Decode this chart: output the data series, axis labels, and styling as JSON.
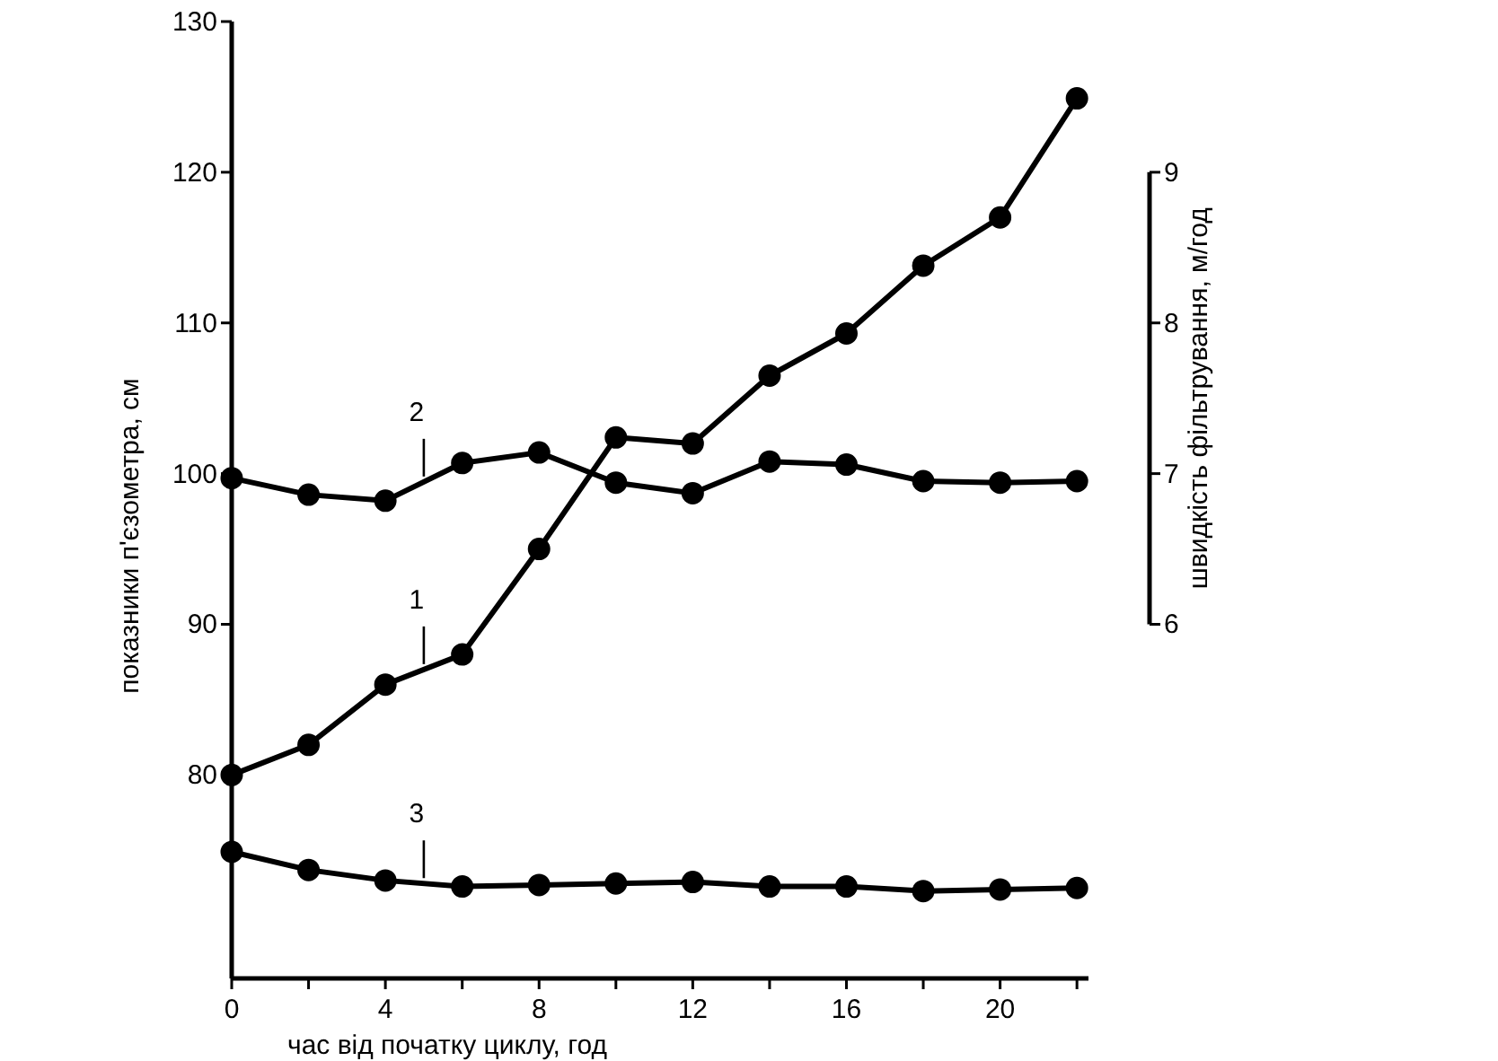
{
  "chart_data": {
    "type": "line",
    "xlabel": "час від початку циклу, год",
    "ylabel": "показники п'єзометра, см",
    "y2label": "швидкість фільтрування, м/год",
    "xlim": [
      0,
      22.3
    ],
    "xticks": [
      0,
      {
        "value": 2,
        "label": null
      },
      4,
      {
        "value": 6,
        "label": null
      },
      8,
      {
        "value": 10,
        "label": null
      },
      12,
      {
        "value": 14,
        "label": null
      },
      16,
      {
        "value": 18,
        "label": null
      },
      20,
      {
        "value": 22,
        "label": null
      }
    ],
    "ylim": [
      66.5,
      130
    ],
    "yticks": [
      80,
      90,
      100,
      110,
      120,
      130
    ],
    "y2lim": [
      3.65,
      10
    ],
    "y2ticks": [
      6,
      7,
      8,
      9
    ],
    "marker": "circle",
    "x": [
      0,
      2,
      4,
      6,
      8,
      10,
      12,
      14,
      16,
      18,
      20,
      22
    ],
    "series": [
      {
        "name": "1",
        "color": "#000000",
        "values": [
          80,
          82,
          86,
          88,
          95,
          102.4,
          102,
          106.5,
          109.3,
          113.8,
          117,
          124.9
        ]
      },
      {
        "name": "2",
        "color": "#000000",
        "axis": "y2",
        "values": [
          6.97,
          6.86,
          6.82,
          7.07,
          7.14,
          6.94,
          6.87,
          7.08,
          7.06,
          6.95,
          6.94,
          6.95
        ]
      },
      {
        "name": "3",
        "color": "#000000",
        "values": [
          74.9,
          73.7,
          73.0,
          72.6,
          72.7,
          72.8,
          72.9,
          72.6,
          72.6,
          72.3,
          72.4,
          72.5
        ]
      }
    ]
  }
}
